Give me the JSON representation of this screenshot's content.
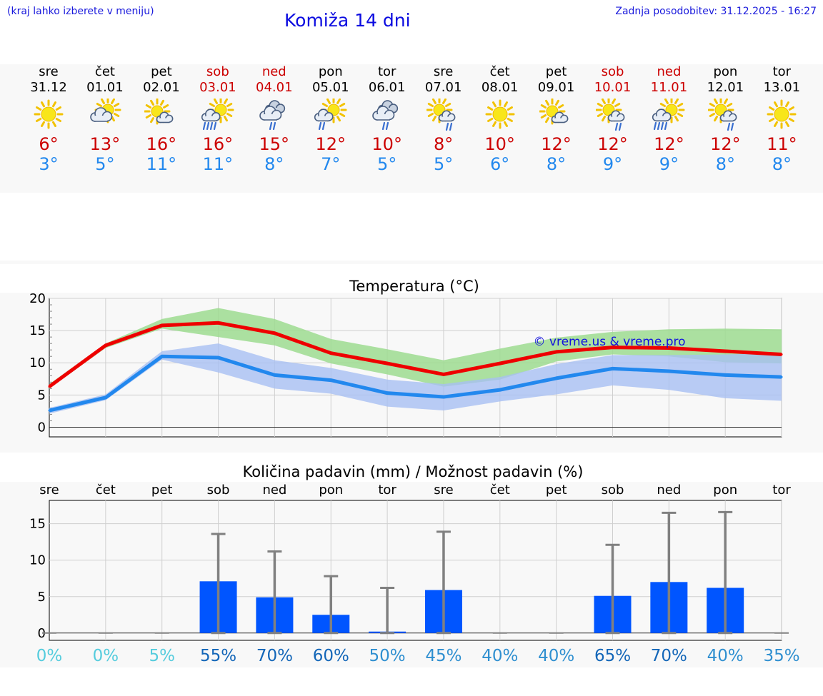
{
  "header": {
    "note": "(kraj lahko izberete v meniju)",
    "title": "Komiža 14 dni",
    "updated": "Zadnja posodobitev: 31.12.2025 - 16:27"
  },
  "days": [
    {
      "name": "sre",
      "date": "31.12",
      "icon": "sun-icon",
      "tmax": "6°",
      "tmin": "3°",
      "weekend": false
    },
    {
      "name": "čet",
      "date": "01.01",
      "icon": "cloud-sun-icon",
      "tmax": "13°",
      "tmin": "5°",
      "weekend": false
    },
    {
      "name": "pet",
      "date": "02.01",
      "icon": "sun-cloud-icon",
      "tmax": "16°",
      "tmin": "11°",
      "weekend": false
    },
    {
      "name": "sob",
      "date": "03.01",
      "icon": "sun-rain-heavy-icon",
      "tmax": "16°",
      "tmin": "11°",
      "weekend": true
    },
    {
      "name": "ned",
      "date": "04.01",
      "icon": "clouds-rain-icon",
      "tmax": "15°",
      "tmin": "8°",
      "weekend": true
    },
    {
      "name": "pon",
      "date": "05.01",
      "icon": "sun-rain-icon",
      "tmax": "12°",
      "tmin": "7°",
      "weekend": false
    },
    {
      "name": "tor",
      "date": "06.01",
      "icon": "clouds-rain-icon",
      "tmax": "10°",
      "tmin": "5°",
      "weekend": false
    },
    {
      "name": "sre",
      "date": "07.01",
      "icon": "sun-cloud-rain-icon",
      "tmax": "8°",
      "tmin": "5°",
      "weekend": false
    },
    {
      "name": "čet",
      "date": "08.01",
      "icon": "sun-icon",
      "tmax": "10°",
      "tmin": "6°",
      "weekend": false
    },
    {
      "name": "pet",
      "date": "09.01",
      "icon": "sun-cloud-icon",
      "tmax": "12°",
      "tmin": "8°",
      "weekend": false
    },
    {
      "name": "sob",
      "date": "10.01",
      "icon": "sun-cloud-rain-icon",
      "tmax": "12°",
      "tmin": "9°",
      "weekend": true
    },
    {
      "name": "ned",
      "date": "11.01",
      "icon": "sun-rain-heavy-icon",
      "tmax": "12°",
      "tmin": "9°",
      "weekend": true
    },
    {
      "name": "pon",
      "date": "12.01",
      "icon": "sun-cloud-rain-icon",
      "tmax": "12°",
      "tmin": "8°",
      "weekend": false
    },
    {
      "name": "tor",
      "date": "13.01",
      "icon": "sun-icon",
      "tmax": "11°",
      "tmin": "8°",
      "weekend": false
    }
  ],
  "colors": {
    "max_line": "#ee0000",
    "min_line": "#2288ee",
    "max_band": "#9ddc90",
    "min_band": "#a7bff2",
    "bar": "#0055ff",
    "err": "#808080",
    "weekend": "#cc0000"
  },
  "chart_data": [
    {
      "type": "line",
      "title": "Temperatura (°C)",
      "watermark": "© vreme.us & vreme.pro",
      "ylim": [
        -1.5,
        20
      ],
      "yticks": [
        0,
        5,
        10,
        15,
        20
      ],
      "series": [
        {
          "name": "max",
          "values": [
            6.3,
            12.7,
            15.8,
            16.2,
            14.6,
            11.5,
            9.9,
            8.2,
            9.9,
            11.7,
            12.4,
            12.3,
            11.8,
            11.3
          ]
        },
        {
          "name": "min",
          "values": [
            2.6,
            4.6,
            11.0,
            10.8,
            8.1,
            7.3,
            5.3,
            4.7,
            5.8,
            7.6,
            9.1,
            8.7,
            8.1,
            7.8
          ]
        }
      ],
      "bands": [
        {
          "name": "max-range",
          "low": [
            6.0,
            12.3,
            15.3,
            14.0,
            12.7,
            9.9,
            8.2,
            6.3,
            7.4,
            10.2,
            11.3,
            11.0,
            10.1,
            9.9
          ],
          "high": [
            6.7,
            13.0,
            16.8,
            18.5,
            16.8,
            13.7,
            12.1,
            10.4,
            12.2,
            13.9,
            14.8,
            15.2,
            15.3,
            15.2
          ]
        },
        {
          "name": "min-range",
          "low": [
            2.1,
            4.2,
            10.5,
            8.5,
            6.0,
            5.2,
            3.2,
            2.6,
            4.0,
            5.1,
            6.5,
            5.8,
            4.5,
            4.1
          ],
          "high": [
            3.0,
            5.1,
            11.8,
            13.0,
            10.4,
            9.2,
            7.4,
            6.7,
            7.8,
            9.8,
            11.2,
            11.2,
            11.3,
            11.5
          ]
        }
      ]
    },
    {
      "type": "bar",
      "title": "Količina padavin (mm) / Možnost padavin (%)",
      "ylim": [
        -1,
        18.2
      ],
      "yticks": [
        0,
        5,
        10,
        15
      ],
      "categories": [
        "sre",
        "čet",
        "pet",
        "sob",
        "ned",
        "pon",
        "tor",
        "sre",
        "čet",
        "pet",
        "sob",
        "ned",
        "pon",
        "tor"
      ],
      "values": [
        0,
        0,
        0,
        7.1,
        4.9,
        2.5,
        0.2,
        5.9,
        0,
        0,
        5.1,
        7.0,
        6.2,
        0
      ],
      "err_low": [
        0,
        0,
        0,
        0,
        0,
        0,
        0,
        0,
        0,
        0,
        0,
        0,
        0,
        0
      ],
      "err_high": [
        0,
        0,
        0,
        13.6,
        11.2,
        7.8,
        6.2,
        13.9,
        0,
        0,
        12.1,
        16.5,
        16.6,
        0
      ],
      "probabilities": [
        "0%",
        "0%",
        "5%",
        "55%",
        "70%",
        "60%",
        "50%",
        "45%",
        "40%",
        "40%",
        "65%",
        "70%",
        "40%",
        "35%"
      ],
      "probability_colors": [
        "#55ccdd",
        "#55ccdd",
        "#55ccdd",
        "#1366b8",
        "#1366b8",
        "#1366b8",
        "#2f8fd0",
        "#2f8fd0",
        "#2f8fd0",
        "#2f8fd0",
        "#1366b8",
        "#1366b8",
        "#2f8fd0",
        "#2f8fd0"
      ]
    }
  ]
}
